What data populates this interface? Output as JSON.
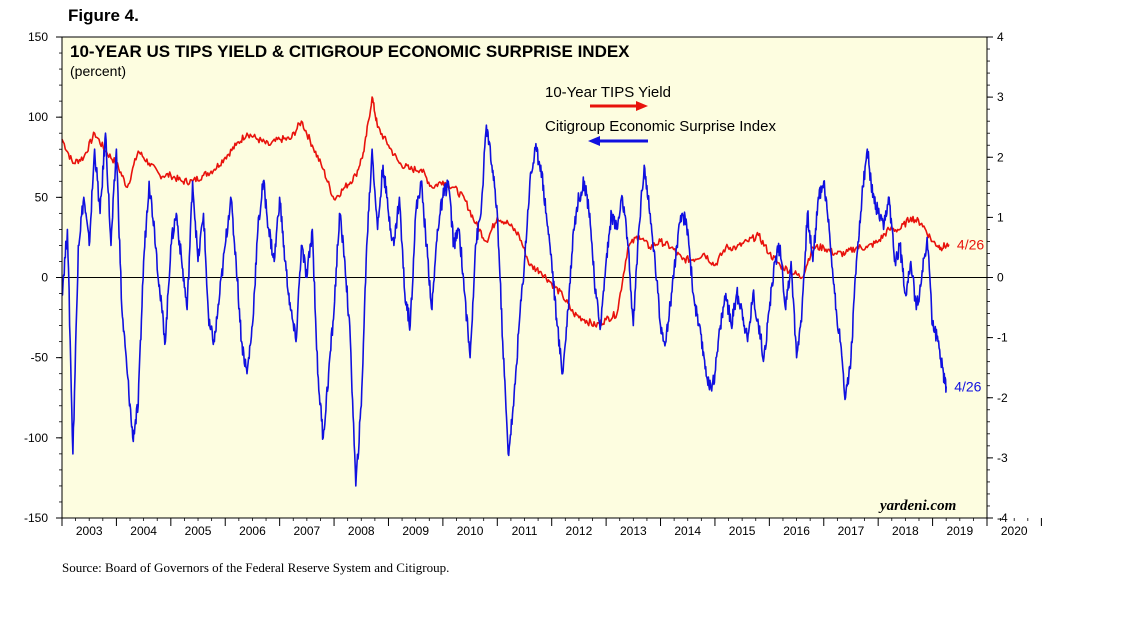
{
  "figure_label": "Figure 4.",
  "source_text": "Source: Board of Governors of the Federal Reserve System and Citigroup.",
  "watermark": "yardeni.com",
  "colors": {
    "background": "#fdfde0",
    "tips": "#e8120c",
    "surprise": "#1010e0"
  },
  "chart_data": {
    "type": "line",
    "title": "10-YEAR US TIPS YIELD & CITIGROUP ECONOMIC SURPRISE INDEX",
    "subtitle": "(percent)",
    "x_ticks": [
      "2003",
      "2004",
      "2005",
      "2006",
      "2007",
      "2008",
      "2009",
      "2010",
      "2011",
      "2012",
      "2013",
      "2014",
      "2015",
      "2016",
      "2017",
      "2018",
      "2019",
      "2020"
    ],
    "xlim": [
      2003.0,
      2020.0
    ],
    "left_axis": {
      "range": [
        -150,
        150
      ],
      "ticks": [
        "150",
        "100",
        "50",
        "0",
        "-50",
        "-100",
        "-150"
      ]
    },
    "right_axis": {
      "range": [
        -4,
        4
      ],
      "ticks": [
        "4",
        "3",
        "2",
        "1",
        "0",
        "-1",
        "-2",
        "-3",
        "-4"
      ]
    },
    "series": [
      {
        "name": "10-Year TIPS Yield",
        "axis": "right",
        "color": "#e8120c",
        "end_label": "4/26",
        "points": [
          [
            2003.0,
            2.3
          ],
          [
            2003.2,
            1.9
          ],
          [
            2003.4,
            2.0
          ],
          [
            2003.6,
            2.4
          ],
          [
            2003.8,
            2.1
          ],
          [
            2004.0,
            1.9
          ],
          [
            2004.2,
            1.5
          ],
          [
            2004.4,
            2.1
          ],
          [
            2004.6,
            1.9
          ],
          [
            2004.8,
            1.7
          ],
          [
            2005.0,
            1.7
          ],
          [
            2005.2,
            1.6
          ],
          [
            2005.4,
            1.6
          ],
          [
            2005.6,
            1.7
          ],
          [
            2005.8,
            1.8
          ],
          [
            2006.0,
            2.0
          ],
          [
            2006.2,
            2.2
          ],
          [
            2006.4,
            2.4
          ],
          [
            2006.6,
            2.3
          ],
          [
            2006.8,
            2.2
          ],
          [
            2007.0,
            2.3
          ],
          [
            2007.2,
            2.3
          ],
          [
            2007.4,
            2.6
          ],
          [
            2007.6,
            2.2
          ],
          [
            2007.8,
            1.8
          ],
          [
            2008.0,
            1.3
          ],
          [
            2008.2,
            1.5
          ],
          [
            2008.4,
            1.7
          ],
          [
            2008.55,
            2.1
          ],
          [
            2008.7,
            3.0
          ],
          [
            2008.8,
            2.5
          ],
          [
            2009.0,
            2.2
          ],
          [
            2009.2,
            1.9
          ],
          [
            2009.4,
            1.8
          ],
          [
            2009.6,
            1.8
          ],
          [
            2009.8,
            1.5
          ],
          [
            2010.0,
            1.6
          ],
          [
            2010.2,
            1.5
          ],
          [
            2010.4,
            1.3
          ],
          [
            2010.6,
            0.9
          ],
          [
            2010.8,
            0.6
          ],
          [
            2011.0,
            1.0
          ],
          [
            2011.2,
            0.9
          ],
          [
            2011.4,
            0.7
          ],
          [
            2011.6,
            0.2
          ],
          [
            2011.8,
            0.1
          ],
          [
            2012.0,
            -0.1
          ],
          [
            2012.2,
            -0.3
          ],
          [
            2012.4,
            -0.6
          ],
          [
            2012.6,
            -0.7
          ],
          [
            2012.8,
            -0.8
          ],
          [
            2013.0,
            -0.7
          ],
          [
            2013.2,
            -0.6
          ],
          [
            2013.4,
            0.5
          ],
          [
            2013.6,
            0.7
          ],
          [
            2013.8,
            0.5
          ],
          [
            2014.0,
            0.6
          ],
          [
            2014.2,
            0.5
          ],
          [
            2014.4,
            0.3
          ],
          [
            2014.6,
            0.3
          ],
          [
            2014.8,
            0.4
          ],
          [
            2015.0,
            0.2
          ],
          [
            2015.2,
            0.5
          ],
          [
            2015.4,
            0.5
          ],
          [
            2015.6,
            0.6
          ],
          [
            2015.8,
            0.7
          ],
          [
            2016.0,
            0.4
          ],
          [
            2016.2,
            0.2
          ],
          [
            2016.4,
            0.1
          ],
          [
            2016.6,
            0.0
          ],
          [
            2016.8,
            0.5
          ],
          [
            2017.0,
            0.5
          ],
          [
            2017.2,
            0.4
          ],
          [
            2017.4,
            0.4
          ],
          [
            2017.6,
            0.5
          ],
          [
            2017.8,
            0.5
          ],
          [
            2018.0,
            0.6
          ],
          [
            2018.2,
            0.8
          ],
          [
            2018.4,
            0.8
          ],
          [
            2018.6,
            1.0
          ],
          [
            2018.8,
            0.9
          ],
          [
            2019.0,
            0.6
          ],
          [
            2019.15,
            0.5
          ],
          [
            2019.3,
            0.55
          ]
        ]
      },
      {
        "name": "Citigroup Economic Surprise Index",
        "axis": "left",
        "color": "#1010e0",
        "end_label": "4/26",
        "points": [
          [
            2003.0,
            -10
          ],
          [
            2003.1,
            30
          ],
          [
            2003.2,
            -110
          ],
          [
            2003.3,
            20
          ],
          [
            2003.4,
            50
          ],
          [
            2003.5,
            20
          ],
          [
            2003.6,
            80
          ],
          [
            2003.7,
            40
          ],
          [
            2003.8,
            90
          ],
          [
            2003.9,
            20
          ],
          [
            2004.0,
            80
          ],
          [
            2004.1,
            -20
          ],
          [
            2004.2,
            -60
          ],
          [
            2004.3,
            -100
          ],
          [
            2004.4,
            -80
          ],
          [
            2004.5,
            10
          ],
          [
            2004.6,
            60
          ],
          [
            2004.7,
            30
          ],
          [
            2004.8,
            -10
          ],
          [
            2004.9,
            -40
          ],
          [
            2005.0,
            20
          ],
          [
            2005.1,
            40
          ],
          [
            2005.2,
            10
          ],
          [
            2005.3,
            -20
          ],
          [
            2005.4,
            60
          ],
          [
            2005.5,
            10
          ],
          [
            2005.6,
            40
          ],
          [
            2005.7,
            -30
          ],
          [
            2005.8,
            -40
          ],
          [
            2005.9,
            -10
          ],
          [
            2006.0,
            20
          ],
          [
            2006.1,
            50
          ],
          [
            2006.2,
            10
          ],
          [
            2006.3,
            -40
          ],
          [
            2006.4,
            -60
          ],
          [
            2006.5,
            -30
          ],
          [
            2006.6,
            30
          ],
          [
            2006.7,
            60
          ],
          [
            2006.8,
            30
          ],
          [
            2006.9,
            10
          ],
          [
            2007.0,
            50
          ],
          [
            2007.1,
            10
          ],
          [
            2007.2,
            -20
          ],
          [
            2007.3,
            -40
          ],
          [
            2007.4,
            20
          ],
          [
            2007.5,
            0
          ],
          [
            2007.6,
            30
          ],
          [
            2007.7,
            -60
          ],
          [
            2007.8,
            -100
          ],
          [
            2007.9,
            -60
          ],
          [
            2008.0,
            -20
          ],
          [
            2008.1,
            40
          ],
          [
            2008.2,
            10
          ],
          [
            2008.3,
            -40
          ],
          [
            2008.4,
            -130
          ],
          [
            2008.5,
            -80
          ],
          [
            2008.6,
            20
          ],
          [
            2008.7,
            80
          ],
          [
            2008.8,
            30
          ],
          [
            2008.9,
            70
          ],
          [
            2009.0,
            40
          ],
          [
            2009.1,
            20
          ],
          [
            2009.2,
            50
          ],
          [
            2009.3,
            -10
          ],
          [
            2009.4,
            -30
          ],
          [
            2009.5,
            40
          ],
          [
            2009.6,
            60
          ],
          [
            2009.7,
            20
          ],
          [
            2009.8,
            -20
          ],
          [
            2009.9,
            30
          ],
          [
            2010.0,
            50
          ],
          [
            2010.1,
            60
          ],
          [
            2010.2,
            20
          ],
          [
            2010.3,
            30
          ],
          [
            2010.4,
            -10
          ],
          [
            2010.5,
            -50
          ],
          [
            2010.6,
            20
          ],
          [
            2010.7,
            40
          ],
          [
            2010.8,
            95
          ],
          [
            2010.9,
            70
          ],
          [
            2011.0,
            40
          ],
          [
            2011.1,
            -40
          ],
          [
            2011.2,
            -110
          ],
          [
            2011.3,
            -80
          ],
          [
            2011.4,
            -30
          ],
          [
            2011.5,
            10
          ],
          [
            2011.6,
            60
          ],
          [
            2011.7,
            80
          ],
          [
            2011.8,
            70
          ],
          [
            2011.9,
            40
          ],
          [
            2012.0,
            10
          ],
          [
            2012.1,
            -30
          ],
          [
            2012.2,
            -60
          ],
          [
            2012.3,
            -20
          ],
          [
            2012.4,
            30
          ],
          [
            2012.5,
            50
          ],
          [
            2012.6,
            60
          ],
          [
            2012.7,
            40
          ],
          [
            2012.8,
            -10
          ],
          [
            2012.9,
            -30
          ],
          [
            2013.0,
            10
          ],
          [
            2013.1,
            40
          ],
          [
            2013.2,
            30
          ],
          [
            2013.3,
            50
          ],
          [
            2013.4,
            20
          ],
          [
            2013.5,
            -30
          ],
          [
            2013.6,
            30
          ],
          [
            2013.7,
            70
          ],
          [
            2013.8,
            40
          ],
          [
            2013.9,
            10
          ],
          [
            2014.0,
            -30
          ],
          [
            2014.1,
            -40
          ],
          [
            2014.2,
            -10
          ],
          [
            2014.3,
            20
          ],
          [
            2014.4,
            40
          ],
          [
            2014.5,
            30
          ],
          [
            2014.6,
            -10
          ],
          [
            2014.7,
            -30
          ],
          [
            2014.8,
            -50
          ],
          [
            2014.9,
            -70
          ],
          [
            2015.0,
            -60
          ],
          [
            2015.1,
            -30
          ],
          [
            2015.2,
            -10
          ],
          [
            2015.3,
            -30
          ],
          [
            2015.4,
            -10
          ],
          [
            2015.5,
            -20
          ],
          [
            2015.6,
            -40
          ],
          [
            2015.7,
            -10
          ],
          [
            2015.8,
            -30
          ],
          [
            2015.9,
            -50
          ],
          [
            2016.0,
            -20
          ],
          [
            2016.1,
            10
          ],
          [
            2016.2,
            20
          ],
          [
            2016.3,
            -20
          ],
          [
            2016.4,
            10
          ],
          [
            2016.5,
            -50
          ],
          [
            2016.6,
            -20
          ],
          [
            2016.7,
            40
          ],
          [
            2016.8,
            10
          ],
          [
            2016.9,
            50
          ],
          [
            2017.0,
            60
          ],
          [
            2017.1,
            30
          ],
          [
            2017.2,
            -10
          ],
          [
            2017.3,
            -40
          ],
          [
            2017.4,
            -75
          ],
          [
            2017.5,
            -50
          ],
          [
            2017.6,
            10
          ],
          [
            2017.7,
            50
          ],
          [
            2017.8,
            80
          ],
          [
            2017.9,
            50
          ],
          [
            2018.0,
            40
          ],
          [
            2018.1,
            30
          ],
          [
            2018.2,
            50
          ],
          [
            2018.3,
            10
          ],
          [
            2018.4,
            20
          ],
          [
            2018.5,
            -10
          ],
          [
            2018.6,
            10
          ],
          [
            2018.7,
            -20
          ],
          [
            2018.8,
            0
          ],
          [
            2018.9,
            25
          ],
          [
            2019.0,
            -30
          ],
          [
            2019.1,
            -40
          ],
          [
            2019.2,
            -60
          ],
          [
            2019.25,
            -68
          ]
        ]
      }
    ]
  }
}
